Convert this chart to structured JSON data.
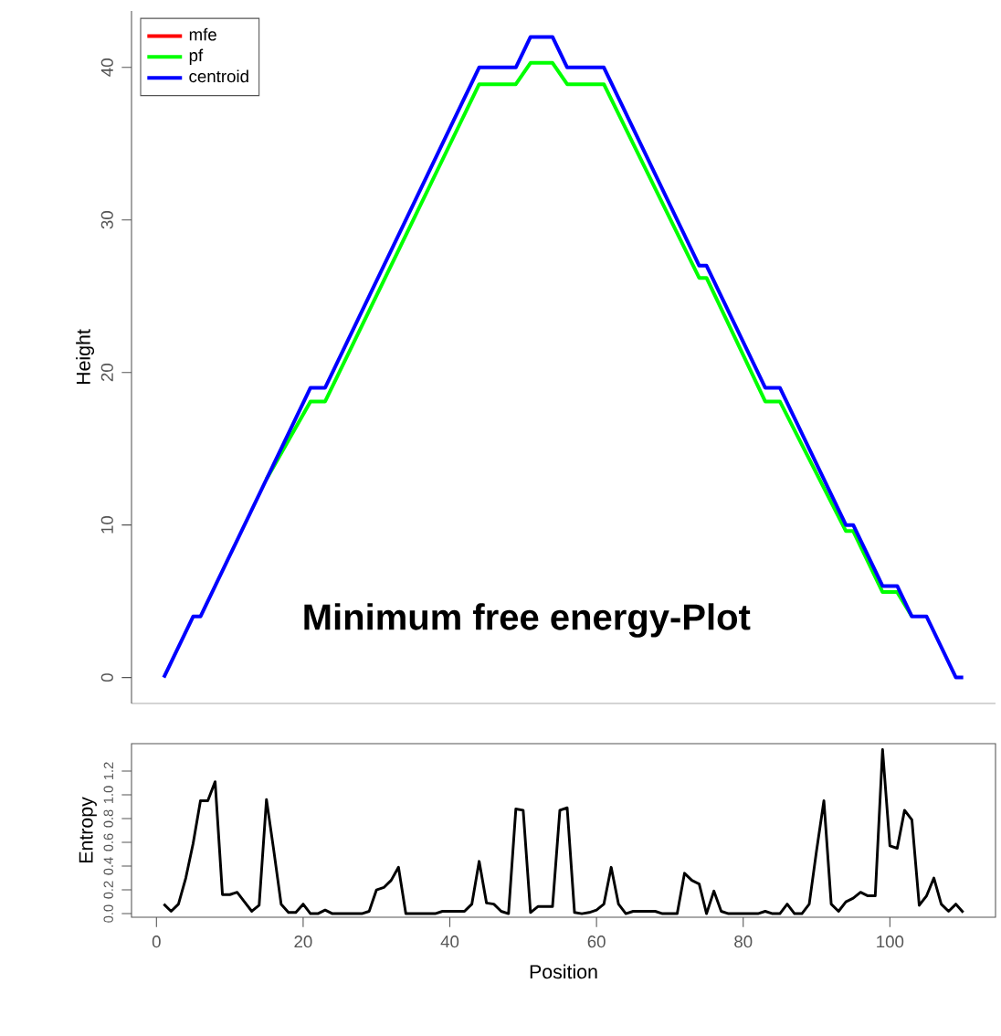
{
  "chart_data": [
    {
      "type": "line",
      "ylabel": "Height",
      "xlim": [
        -3.4,
        114.4
      ],
      "ylim": [
        -1.7,
        43.7
      ],
      "yticks": [
        0,
        10,
        20,
        30,
        40
      ],
      "tick_labels": "y",
      "legend": "top left",
      "annotations": [
        "Minimum free energy-Plot"
      ],
      "series": [
        {
          "name": "mfe",
          "color": "#ff0000",
          "values": [
            null
          ]
        },
        {
          "name": "pf",
          "color": "#00ff00",
          "x": [
            15,
            21,
            23,
            44,
            49,
            51,
            54,
            56,
            61,
            74,
            75,
            83,
            85,
            94,
            95,
            99,
            101,
            103
          ],
          "values": [
            13,
            18.1,
            18.1,
            38.9,
            38.9,
            40.3,
            40.3,
            38.9,
            38.9,
            26.2,
            26.2,
            18.1,
            18.1,
            9.6,
            9.6,
            5.6,
            5.6,
            4
          ]
        },
        {
          "name": "centroid",
          "color": "#0000ff",
          "x": [
            1,
            5,
            6,
            21,
            23,
            44,
            49,
            51,
            54,
            56,
            61,
            74,
            75,
            83,
            85,
            94,
            95,
            99,
            101,
            103,
            105,
            109,
            110
          ],
          "values": [
            0,
            4,
            4,
            19,
            19,
            40,
            40,
            42,
            42,
            40,
            40,
            27,
            27,
            19,
            19,
            10,
            10,
            6,
            6,
            4,
            4,
            0,
            0
          ]
        }
      ]
    },
    {
      "type": "line",
      "xlabel": "Position",
      "ylabel": "Entropy",
      "xlim": [
        -3.4,
        114.4
      ],
      "ylim": [
        -0.03,
        1.43
      ],
      "xticks": [
        0,
        20,
        40,
        60,
        80,
        100
      ],
      "yticks": [
        {
          "value": 0,
          "label": "0.0"
        },
        {
          "value": 0.2,
          "label": "0.2"
        },
        {
          "value": 0.4,
          "label": "0.4"
        },
        {
          "value": 0.6,
          "label": "0.6"
        },
        {
          "value": 0.8,
          "label": "0.8"
        },
        {
          "value": 1.0,
          "label": "1.0"
        },
        {
          "value": 1.2,
          "label": "1.2"
        }
      ],
      "series": [
        {
          "color": "#000000",
          "x": [
            1,
            2,
            3,
            4,
            5,
            6,
            7,
            8,
            9,
            10,
            11,
            12,
            13,
            14,
            15,
            16,
            17,
            18,
            19,
            20,
            21,
            22,
            23,
            24,
            25,
            26,
            27,
            28,
            29,
            30,
            31,
            32,
            33,
            34,
            35,
            36,
            37,
            38,
            39,
            40,
            41,
            42,
            43,
            44,
            45,
            46,
            47,
            48,
            49,
            50,
            51,
            52,
            53,
            54,
            55,
            56,
            57,
            58,
            59,
            60,
            61,
            62,
            63,
            64,
            65,
            66,
            67,
            68,
            69,
            70,
            71,
            72,
            73,
            74,
            75,
            76,
            77,
            78,
            79,
            80,
            81,
            82,
            83,
            84,
            85,
            86,
            87,
            88,
            89,
            90,
            91,
            92,
            93,
            94,
            95,
            96,
            97,
            98,
            99,
            100,
            101,
            102,
            103,
            104,
            105,
            106,
            107,
            108,
            109,
            110
          ],
          "values": [
            0.08,
            0.02,
            0.08,
            0.3,
            0.59,
            0.95,
            0.95,
            1.11,
            0.16,
            0.16,
            0.18,
            0.1,
            0.02,
            0.07,
            0.96,
            0.53,
            0.08,
            0.01,
            0.01,
            0.08,
            0,
            0,
            0.03,
            0,
            0,
            0,
            0,
            0,
            0.02,
            0.2,
            0.22,
            0.28,
            0.39,
            0,
            0,
            0,
            0,
            0,
            0.02,
            0.02,
            0.02,
            0.02,
            0.08,
            0.44,
            0.09,
            0.08,
            0.02,
            0,
            0.88,
            0.87,
            0.01,
            0.06,
            0.06,
            0.06,
            0.87,
            0.89,
            0.01,
            0,
            0.01,
            0.03,
            0.08,
            0.39,
            0.08,
            0,
            0.02,
            0.02,
            0.02,
            0.02,
            0,
            0,
            0,
            0.34,
            0.28,
            0.25,
            0,
            0.19,
            0.02,
            0,
            0,
            0,
            0,
            0,
            0.02,
            0,
            0,
            0.08,
            0,
            0,
            0.08,
            0.53,
            0.95,
            0.08,
            0.02,
            0.1,
            0.13,
            0.18,
            0.15,
            0.15,
            1.38,
            0.57,
            0.55,
            0.87,
            0.79,
            0.07,
            0.15,
            0.3,
            0.08,
            0.02,
            0.08,
            0.01
          ]
        }
      ]
    }
  ]
}
